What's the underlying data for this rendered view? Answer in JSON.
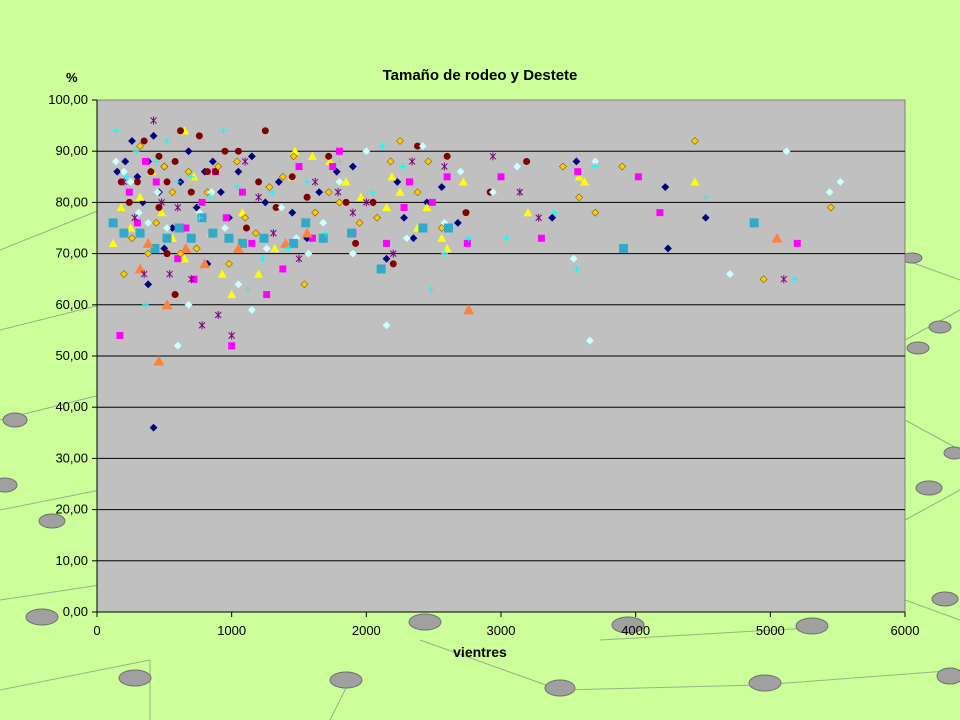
{
  "colors": {
    "slide_background": "#ccff99",
    "plot_area": "#c0c0c0",
    "gridline": "#000000",
    "navy": "#000080",
    "yellow": "#ffff00",
    "magenta": "#ff00ff",
    "cyan": "#00ffff",
    "maroon": "#800000",
    "olive_diamond": "#ffcc00",
    "teal_square": "#33a9c9",
    "orange_triangle": "#ff8040",
    "purple_star": "#800080",
    "light_cyan": "#ccffff"
  },
  "chart_data": {
    "type": "scatter",
    "title": "Tamaño de rodeo y Destete",
    "xlabel": "vientres",
    "ylabel": "%",
    "xlim": [
      0,
      6000
    ],
    "ylim": [
      0,
      100
    ],
    "x_ticks": [
      "0",
      "1000",
      "2000",
      "3000",
      "4000",
      "5000",
      "6000"
    ],
    "y_ticks": [
      "0,00",
      "10,00",
      "20,00",
      "30,00",
      "40,00",
      "50,00",
      "60,00",
      "70,00",
      "80,00",
      "90,00",
      "100,00"
    ],
    "grid": "horizontal",
    "legend": "none",
    "series": [
      {
        "marker": "diamond",
        "color": "#000080",
        "points": [
          [
            150,
            86
          ],
          [
            210,
            88
          ],
          [
            260,
            92
          ],
          [
            300,
            85
          ],
          [
            340,
            80
          ],
          [
            380,
            88
          ],
          [
            420,
            93
          ],
          [
            460,
            82
          ],
          [
            500,
            87
          ],
          [
            560,
            75
          ],
          [
            620,
            84
          ],
          [
            680,
            90
          ],
          [
            740,
            79
          ],
          [
            800,
            86
          ],
          [
            860,
            88
          ],
          [
            920,
            82
          ],
          [
            980,
            77
          ],
          [
            1050,
            86
          ],
          [
            1150,
            89
          ],
          [
            1250,
            80
          ],
          [
            1350,
            84
          ],
          [
            1450,
            78
          ],
          [
            1560,
            73
          ],
          [
            1650,
            82
          ],
          [
            1780,
            86
          ],
          [
            1900,
            87
          ],
          [
            2050,
            80
          ],
          [
            2150,
            69
          ],
          [
            2230,
            84
          ],
          [
            2280,
            77
          ],
          [
            2350,
            73
          ],
          [
            2450,
            80
          ],
          [
            2560,
            83
          ],
          [
            2680,
            76
          ],
          [
            3380,
            77
          ],
          [
            3560,
            88
          ],
          [
            4220,
            83
          ],
          [
            4240,
            71
          ],
          [
            4520,
            77
          ],
          [
            420,
            36
          ],
          [
            380,
            64
          ],
          [
            500,
            71
          ],
          [
            820,
            68
          ]
        ]
      },
      {
        "marker": "triangle",
        "color": "#ffff00",
        "points": [
          [
            120,
            72
          ],
          [
            180,
            79
          ],
          [
            250,
            75
          ],
          [
            320,
            81
          ],
          [
            410,
            86
          ],
          [
            480,
            78
          ],
          [
            560,
            73
          ],
          [
            650,
            69
          ],
          [
            720,
            85
          ],
          [
            780,
            80
          ],
          [
            850,
            74
          ],
          [
            930,
            66
          ],
          [
            1000,
            62
          ],
          [
            1080,
            78
          ],
          [
            1200,
            66
          ],
          [
            1320,
            71
          ],
          [
            1450,
            85
          ],
          [
            1600,
            89
          ],
          [
            1730,
            88
          ],
          [
            1850,
            84
          ],
          [
            1960,
            81
          ],
          [
            2150,
            79
          ],
          [
            2190,
            85
          ],
          [
            2250,
            82
          ],
          [
            2380,
            75
          ],
          [
            2450,
            79
          ],
          [
            2560,
            73
          ],
          [
            2600,
            71
          ],
          [
            2720,
            84
          ],
          [
            3200,
            78
          ],
          [
            3580,
            85
          ],
          [
            3620,
            84
          ],
          [
            4440,
            84
          ],
          [
            650,
            94
          ],
          [
            1470,
            90
          ]
        ]
      },
      {
        "marker": "square",
        "color": "#ff00ff",
        "points": [
          [
            170,
            54
          ],
          [
            240,
            82
          ],
          [
            300,
            76
          ],
          [
            360,
            88
          ],
          [
            440,
            84
          ],
          [
            520,
            73
          ],
          [
            600,
            69
          ],
          [
            660,
            75
          ],
          [
            720,
            65
          ],
          [
            780,
            80
          ],
          [
            880,
            86
          ],
          [
            960,
            77
          ],
          [
            1000,
            52
          ],
          [
            1080,
            82
          ],
          [
            1150,
            72
          ],
          [
            1260,
            62
          ],
          [
            1380,
            67
          ],
          [
            1500,
            87
          ],
          [
            1600,
            73
          ],
          [
            1750,
            87
          ],
          [
            1800,
            90
          ],
          [
            1900,
            74
          ],
          [
            2150,
            72
          ],
          [
            2280,
            79
          ],
          [
            2320,
            84
          ],
          [
            2490,
            80
          ],
          [
            2600,
            85
          ],
          [
            2750,
            72
          ],
          [
            3000,
            85
          ],
          [
            3300,
            73
          ],
          [
            3570,
            86
          ],
          [
            4020,
            85
          ],
          [
            4180,
            78
          ],
          [
            5200,
            72
          ]
        ]
      },
      {
        "marker": "circle",
        "color": "#800000",
        "points": [
          [
            180,
            84
          ],
          [
            240,
            80
          ],
          [
            300,
            84
          ],
          [
            350,
            92
          ],
          [
            400,
            86
          ],
          [
            460,
            89
          ],
          [
            520,
            84
          ],
          [
            580,
            88
          ],
          [
            620,
            94
          ],
          [
            700,
            82
          ],
          [
            760,
            93
          ],
          [
            820,
            86
          ],
          [
            880,
            86
          ],
          [
            950,
            90
          ],
          [
            1050,
            90
          ],
          [
            1110,
            75
          ],
          [
            1200,
            84
          ],
          [
            1250,
            94
          ],
          [
            1330,
            79
          ],
          [
            1450,
            85
          ],
          [
            1560,
            81
          ],
          [
            1720,
            89
          ],
          [
            1850,
            80
          ],
          [
            1920,
            72
          ],
          [
            2050,
            80
          ],
          [
            2200,
            68
          ],
          [
            2380,
            91
          ],
          [
            2600,
            89
          ],
          [
            2740,
            78
          ],
          [
            2920,
            82
          ],
          [
            3190,
            88
          ],
          [
            460,
            79
          ],
          [
            520,
            70
          ],
          [
            580,
            62
          ]
        ]
      },
      {
        "marker": "diamond",
        "color": "#ffcc00",
        "points": [
          [
            200,
            66
          ],
          [
            260,
            73
          ],
          [
            320,
            91
          ],
          [
            380,
            70
          ],
          [
            440,
            76
          ],
          [
            500,
            87
          ],
          [
            560,
            82
          ],
          [
            620,
            70
          ],
          [
            680,
            86
          ],
          [
            740,
            71
          ],
          [
            820,
            82
          ],
          [
            900,
            87
          ],
          [
            980,
            68
          ],
          [
            1040,
            88
          ],
          [
            1100,
            77
          ],
          [
            1180,
            74
          ],
          [
            1280,
            83
          ],
          [
            1380,
            85
          ],
          [
            1460,
            89
          ],
          [
            1540,
            64
          ],
          [
            1620,
            78
          ],
          [
            1720,
            82
          ],
          [
            1800,
            80
          ],
          [
            1950,
            76
          ],
          [
            2080,
            77
          ],
          [
            2180,
            88
          ],
          [
            2250,
            92
          ],
          [
            2380,
            82
          ],
          [
            2460,
            88
          ],
          [
            2560,
            75
          ],
          [
            3460,
            87
          ],
          [
            3580,
            81
          ],
          [
            3700,
            78
          ],
          [
            3900,
            87
          ],
          [
            4440,
            92
          ],
          [
            4950,
            65
          ],
          [
            5450,
            79
          ]
        ]
      },
      {
        "marker": "diamond",
        "color": "#ccffff",
        "points": [
          [
            140,
            88
          ],
          [
            200,
            86
          ],
          [
            250,
            84
          ],
          [
            310,
            78
          ],
          [
            380,
            76
          ],
          [
            450,
            82
          ],
          [
            520,
            75
          ],
          [
            600,
            52
          ],
          [
            680,
            60
          ],
          [
            760,
            78
          ],
          [
            850,
            82
          ],
          [
            950,
            75
          ],
          [
            1050,
            64
          ],
          [
            1150,
            59
          ],
          [
            1260,
            71
          ],
          [
            1370,
            79
          ],
          [
            1480,
            73
          ],
          [
            1570,
            70
          ],
          [
            1680,
            76
          ],
          [
            1800,
            84
          ],
          [
            1900,
            70
          ],
          [
            2000,
            90
          ],
          [
            2150,
            56
          ],
          [
            2300,
            73
          ],
          [
            2420,
            91
          ],
          [
            2580,
            76
          ],
          [
            2700,
            86
          ],
          [
            2940,
            82
          ],
          [
            3120,
            87
          ],
          [
            3540,
            69
          ],
          [
            3660,
            53
          ],
          [
            3700,
            88
          ],
          [
            4700,
            66
          ],
          [
            5120,
            90
          ],
          [
            5440,
            82
          ],
          [
            5520,
            84
          ]
        ]
      },
      {
        "marker": "square",
        "color": "#33a9c9",
        "points": [
          [
            120,
            76
          ],
          [
            200,
            74
          ],
          [
            320,
            74
          ],
          [
            430,
            71
          ],
          [
            520,
            73
          ],
          [
            610,
            75
          ],
          [
            700,
            73
          ],
          [
            780,
            77
          ],
          [
            860,
            74
          ],
          [
            980,
            73
          ],
          [
            1080,
            72
          ],
          [
            1240,
            73
          ],
          [
            1460,
            72
          ],
          [
            1550,
            76
          ],
          [
            1680,
            73
          ],
          [
            1890,
            74
          ],
          [
            2110,
            67
          ],
          [
            2420,
            75
          ],
          [
            2610,
            75
          ],
          [
            3910,
            71
          ],
          [
            4880,
            76
          ]
        ]
      },
      {
        "marker": "triangle",
        "color": "#ff8040",
        "points": [
          [
            320,
            67
          ],
          [
            380,
            72
          ],
          [
            460,
            49
          ],
          [
            520,
            60
          ],
          [
            660,
            71
          ],
          [
            800,
            68
          ],
          [
            1050,
            71
          ],
          [
            1400,
            72
          ],
          [
            1560,
            74
          ],
          [
            2760,
            59
          ],
          [
            5050,
            73
          ]
        ]
      },
      {
        "marker": "star",
        "color": "#800080",
        "points": [
          [
            200,
            84
          ],
          [
            280,
            77
          ],
          [
            350,
            66
          ],
          [
            420,
            96
          ],
          [
            480,
            80
          ],
          [
            540,
            66
          ],
          [
            600,
            79
          ],
          [
            700,
            65
          ],
          [
            780,
            56
          ],
          [
            900,
            58
          ],
          [
            1000,
            54
          ],
          [
            1100,
            88
          ],
          [
            1200,
            81
          ],
          [
            1310,
            74
          ],
          [
            1500,
            69
          ],
          [
            1620,
            84
          ],
          [
            1790,
            82
          ],
          [
            1900,
            78
          ],
          [
            2000,
            80
          ],
          [
            2200,
            70
          ],
          [
            2340,
            88
          ],
          [
            2580,
            87
          ],
          [
            2940,
            89
          ],
          [
            3140,
            82
          ],
          [
            3280,
            77
          ],
          [
            5100,
            65
          ]
        ]
      },
      {
        "marker": "cross",
        "color": "#00ffff",
        "points": [
          [
            140,
            94
          ],
          [
            220,
            85
          ],
          [
            290,
            90
          ],
          [
            360,
            60
          ],
          [
            440,
            88
          ],
          [
            520,
            92
          ],
          [
            600,
            84
          ],
          [
            700,
            85
          ],
          [
            760,
            77
          ],
          [
            840,
            81
          ],
          [
            940,
            94
          ],
          [
            1040,
            83
          ],
          [
            1120,
            63
          ],
          [
            1230,
            69
          ],
          [
            1300,
            82
          ],
          [
            1420,
            71
          ],
          [
            1560,
            84
          ],
          [
            1700,
            74
          ],
          [
            1800,
            88
          ],
          [
            2050,
            82
          ],
          [
            2120,
            91
          ],
          [
            2270,
            87
          ],
          [
            2480,
            63
          ],
          [
            2580,
            70
          ],
          [
            2760,
            73
          ],
          [
            3040,
            73
          ],
          [
            3400,
            78
          ],
          [
            3560,
            67
          ],
          [
            3700,
            87
          ],
          [
            4520,
            81
          ],
          [
            5180,
            65
          ]
        ]
      }
    ]
  }
}
